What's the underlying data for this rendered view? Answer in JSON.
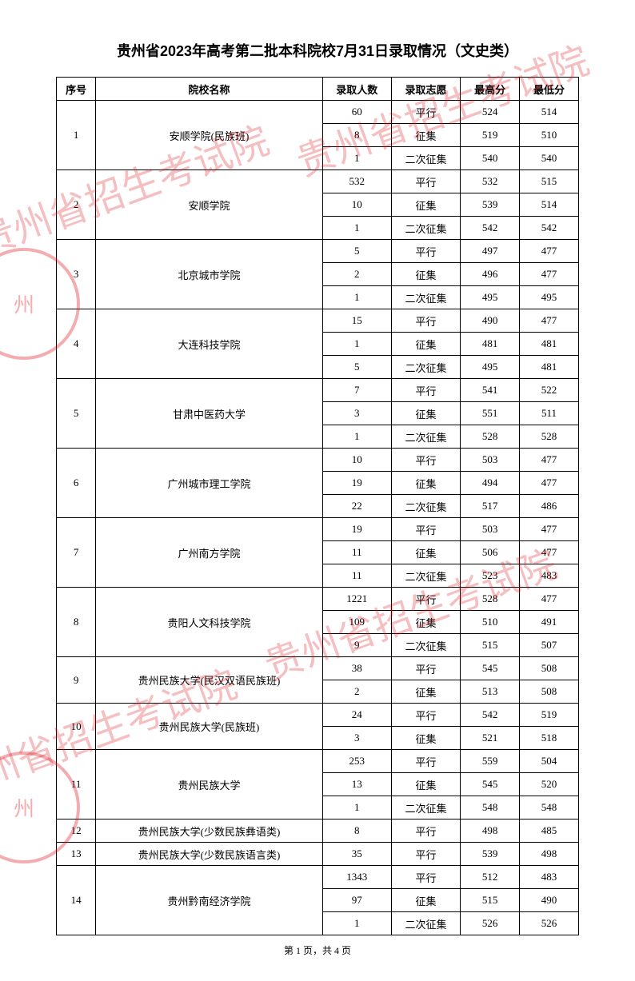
{
  "title": "贵州省2023年高考第二批本科院校7月31日录取情况（文史类）",
  "headers": {
    "index": "序号",
    "name": "院校名称",
    "count": "录取人数",
    "type": "录取志愿",
    "high": "最高分",
    "low": "最低分"
  },
  "rows": [
    {
      "index": "1",
      "name": "安顺学院(民族班)",
      "sub": [
        {
          "count": "60",
          "type": "平行",
          "high": "524",
          "low": "514"
        },
        {
          "count": "8",
          "type": "征集",
          "high": "519",
          "low": "510"
        },
        {
          "count": "1",
          "type": "二次征集",
          "high": "540",
          "low": "540"
        }
      ]
    },
    {
      "index": "2",
      "name": "安顺学院",
      "sub": [
        {
          "count": "532",
          "type": "平行",
          "high": "532",
          "low": "515"
        },
        {
          "count": "10",
          "type": "征集",
          "high": "539",
          "low": "514"
        },
        {
          "count": "1",
          "type": "二次征集",
          "high": "542",
          "low": "542"
        }
      ]
    },
    {
      "index": "3",
      "name": "北京城市学院",
      "sub": [
        {
          "count": "5",
          "type": "平行",
          "high": "497",
          "low": "477"
        },
        {
          "count": "2",
          "type": "征集",
          "high": "496",
          "low": "477"
        },
        {
          "count": "1",
          "type": "二次征集",
          "high": "495",
          "low": "495"
        }
      ]
    },
    {
      "index": "4",
      "name": "大连科技学院",
      "sub": [
        {
          "count": "15",
          "type": "平行",
          "high": "490",
          "low": "477"
        },
        {
          "count": "1",
          "type": "征集",
          "high": "481",
          "low": "481"
        },
        {
          "count": "5",
          "type": "二次征集",
          "high": "495",
          "low": "481"
        }
      ]
    },
    {
      "index": "5",
      "name": "甘肃中医药大学",
      "sub": [
        {
          "count": "7",
          "type": "平行",
          "high": "541",
          "low": "522"
        },
        {
          "count": "3",
          "type": "征集",
          "high": "551",
          "low": "511"
        },
        {
          "count": "1",
          "type": "二次征集",
          "high": "528",
          "low": "528"
        }
      ]
    },
    {
      "index": "6",
      "name": "广州城市理工学院",
      "sub": [
        {
          "count": "10",
          "type": "平行",
          "high": "503",
          "low": "477"
        },
        {
          "count": "19",
          "type": "征集",
          "high": "494",
          "low": "477"
        },
        {
          "count": "22",
          "type": "二次征集",
          "high": "517",
          "low": "486"
        }
      ]
    },
    {
      "index": "7",
      "name": "广州南方学院",
      "sub": [
        {
          "count": "19",
          "type": "平行",
          "high": "503",
          "low": "477"
        },
        {
          "count": "11",
          "type": "征集",
          "high": "506",
          "low": "477"
        },
        {
          "count": "11",
          "type": "二次征集",
          "high": "523",
          "low": "483"
        }
      ]
    },
    {
      "index": "8",
      "name": "贵阳人文科技学院",
      "sub": [
        {
          "count": "1221",
          "type": "平行",
          "high": "528",
          "low": "477"
        },
        {
          "count": "109",
          "type": "征集",
          "high": "510",
          "low": "491"
        },
        {
          "count": "9",
          "type": "二次征集",
          "high": "515",
          "low": "507"
        }
      ]
    },
    {
      "index": "9",
      "name": "贵州民族大学(民汉双语民族班)",
      "sub": [
        {
          "count": "38",
          "type": "平行",
          "high": "545",
          "low": "508"
        },
        {
          "count": "2",
          "type": "征集",
          "high": "513",
          "low": "508"
        }
      ]
    },
    {
      "index": "10",
      "name": "贵州民族大学(民族班)",
      "sub": [
        {
          "count": "24",
          "type": "平行",
          "high": "542",
          "low": "519"
        },
        {
          "count": "3",
          "type": "征集",
          "high": "521",
          "low": "518"
        }
      ]
    },
    {
      "index": "11",
      "name": "贵州民族大学",
      "sub": [
        {
          "count": "253",
          "type": "平行",
          "high": "559",
          "low": "504"
        },
        {
          "count": "13",
          "type": "征集",
          "high": "545",
          "low": "520"
        },
        {
          "count": "1",
          "type": "二次征集",
          "high": "548",
          "low": "548"
        }
      ]
    },
    {
      "index": "12",
      "name": "贵州民族大学(少数民族彝语类)",
      "sub": [
        {
          "count": "8",
          "type": "平行",
          "high": "498",
          "low": "485"
        }
      ]
    },
    {
      "index": "13",
      "name": "贵州民族大学(少数民族语言类)",
      "sub": [
        {
          "count": "35",
          "type": "平行",
          "high": "539",
          "low": "498"
        }
      ]
    },
    {
      "index": "14",
      "name": "贵州黔南经济学院",
      "sub": [
        {
          "count": "1343",
          "type": "平行",
          "high": "512",
          "low": "483"
        },
        {
          "count": "97",
          "type": "征集",
          "high": "515",
          "low": "490"
        },
        {
          "count": "1",
          "type": "二次征集",
          "high": "526",
          "low": "526"
        }
      ]
    }
  ],
  "footer": "第 1 页，共 4 页",
  "watermark_text": "贵州省招生考试院",
  "watermark_color": "rgba(220,20,30,0.28)",
  "stamp_text": "州"
}
